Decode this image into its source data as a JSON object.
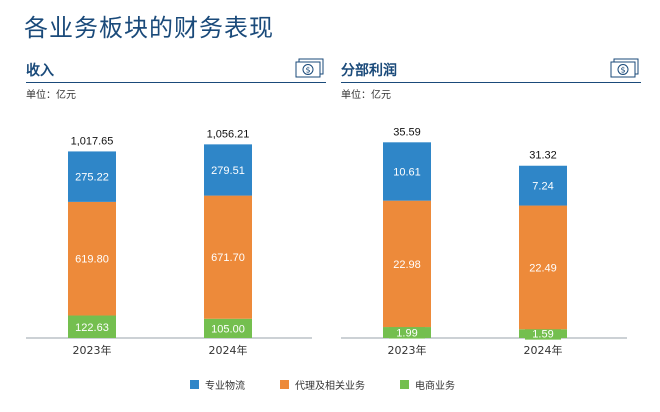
{
  "page": {
    "title": "各业务板块的财务表现"
  },
  "colors": {
    "accent": "#1a4a7a",
    "express": "#2f86c8",
    "agency": "#ed8a3a",
    "ecommerce": "#74bf4f"
  },
  "legend": [
    {
      "label": "专业物流",
      "color": "#2f86c8"
    },
    {
      "label": "代理及相关业务",
      "color": "#ed8a3a"
    },
    {
      "label": "电商业务",
      "color": "#74bf4f"
    }
  ],
  "panels": [
    {
      "title": "收入",
      "unit": "单位：亿元",
      "icon": "money-icon"
    },
    {
      "title": "分部利润",
      "unit": "单位：亿元",
      "icon": "money-icon"
    }
  ],
  "chart_data": [
    {
      "type": "bar",
      "stacked": true,
      "title": "收入",
      "categories": [
        "2023年",
        "2024年"
      ],
      "series": [
        {
          "name": "电商业务",
          "values": [
            122.63,
            105.0
          ]
        },
        {
          "name": "代理及相关业务",
          "values": [
            619.8,
            671.7
          ]
        },
        {
          "name": "专业物流",
          "values": [
            275.22,
            279.51
          ]
        }
      ],
      "totals": [
        "1,017.65",
        "1,056.21"
      ],
      "segment_labels": [
        [
          "122.63",
          "619.80",
          "275.22"
        ],
        [
          "105.00",
          "671.70",
          "279.51"
        ]
      ],
      "ylim": [
        0,
        1200
      ]
    },
    {
      "type": "bar",
      "stacked": true,
      "title": "分部利润",
      "categories": [
        "2023年",
        "2024年"
      ],
      "series": [
        {
          "name": "电商业务",
          "values": [
            1.99,
            1.59
          ]
        },
        {
          "name": "代理及相关业务",
          "values": [
            22.98,
            22.49
          ]
        },
        {
          "name": "专业物流",
          "values": [
            10.61,
            7.24
          ]
        }
      ],
      "totals": [
        "35.59",
        "31.32"
      ],
      "segment_labels": [
        [
          "1.99",
          "22.98",
          "10.61"
        ],
        [
          "1.59",
          "22.49",
          "7.24"
        ]
      ],
      "ylim": [
        0,
        40
      ]
    }
  ]
}
